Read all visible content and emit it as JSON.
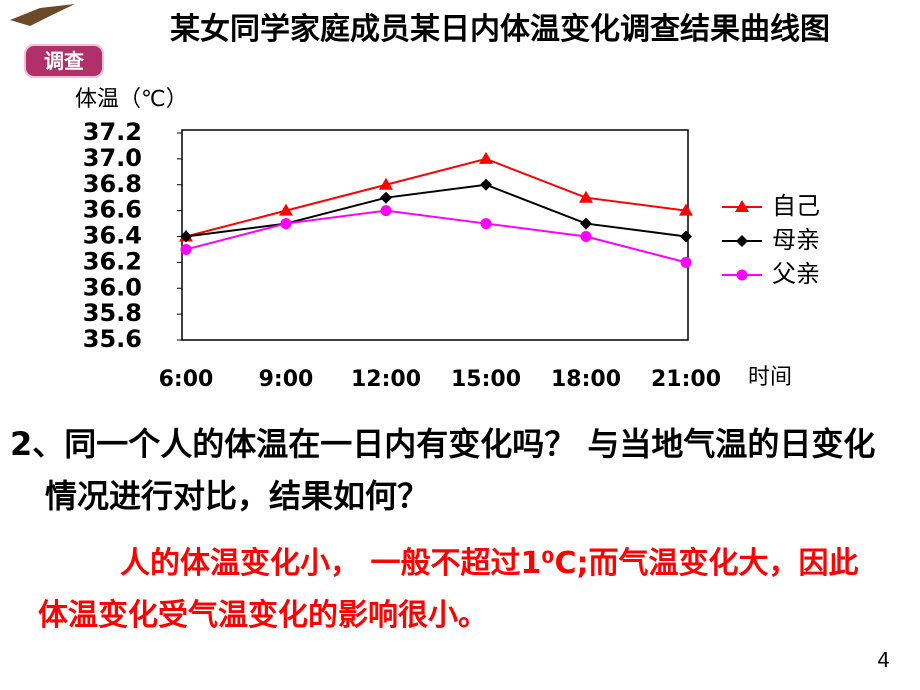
{
  "chart_data": {
    "type": "line",
    "title": "某女同学家庭成员某日内体温变化调查结果曲线图",
    "y_label": "体温（℃）",
    "x_label": "时间",
    "categories": [
      "6:00",
      "9:00",
      "12:00",
      "15:00",
      "18:00",
      "21:00"
    ],
    "series": [
      {
        "name": "自己",
        "color": "#ff0000",
        "marker": "triangle",
        "values": [
          36.4,
          36.6,
          36.8,
          37.0,
          36.7,
          36.6
        ]
      },
      {
        "name": "母亲",
        "color": "#000000",
        "marker": "diamond",
        "values": [
          36.4,
          36.5,
          36.7,
          36.8,
          36.5,
          36.4
        ]
      },
      {
        "name": "父亲",
        "color": "#ff00ff",
        "marker": "circle",
        "values": [
          36.3,
          36.5,
          36.6,
          36.5,
          36.4,
          36.2
        ]
      }
    ],
    "ylim": [
      35.6,
      37.2
    ],
    "yticks": [
      35.6,
      35.8,
      {
        "value": 36,
        "label": "36.0"
      },
      36.2,
      36.4,
      36.6,
      36.8,
      {
        "value": 37,
        "label": "37.0"
      },
      37.2
    ],
    "grid": false,
    "legend": "right"
  },
  "slide": {
    "badge": "调查",
    "question": "2、同一个人的体温在一日内有变化吗？ 与当地气温的日变化情况进行对比，结果如何？",
    "answer": "人的体温变化小， 一般不超过1⁰C;而气温变化大，因此体温变化受气温变化的影响很小。",
    "page_number": "4"
  }
}
